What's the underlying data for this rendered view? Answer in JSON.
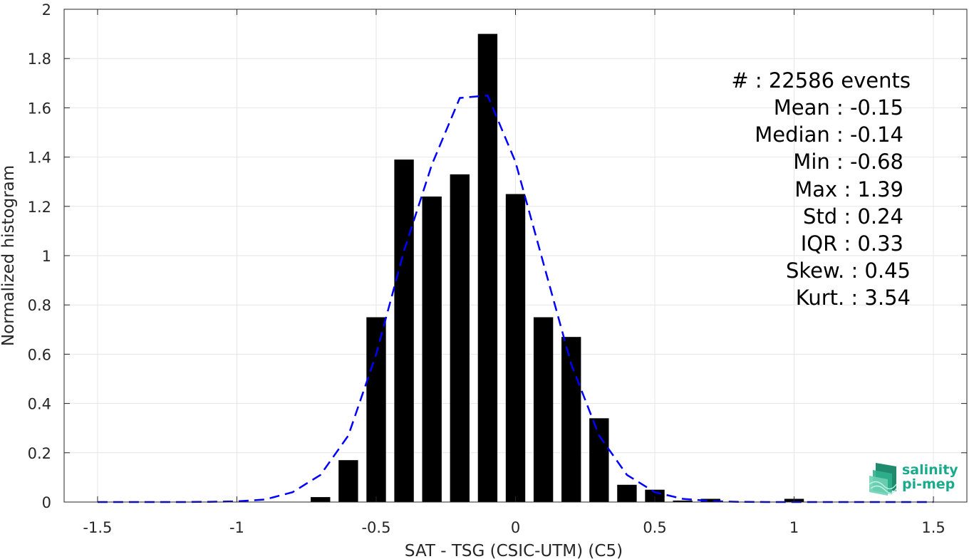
{
  "chart_data": {
    "type": "bar",
    "xlabel": "SAT - TSG (CSIC-UTM) (C5)",
    "ylabel": "Normalized histogram",
    "xlim": [
      -1.62,
      1.62
    ],
    "ylim": [
      0,
      2
    ],
    "x_ticks": [
      -1.5,
      -1,
      -0.5,
      0,
      0.5,
      1,
      1.5
    ],
    "x_tick_labels": [
      "-1.5",
      "-1",
      "-0.5",
      "0",
      "0.5",
      "1",
      "1.5"
    ],
    "y_ticks": [
      0,
      0.2,
      0.4,
      0.6,
      0.8,
      1,
      1.2,
      1.4,
      1.6,
      1.8,
      2
    ],
    "y_tick_labels": [
      "0",
      "0.2",
      "0.4",
      "0.6",
      "0.8",
      "1",
      "1.2",
      "1.4",
      "1.6",
      "1.8",
      "2"
    ],
    "grid": true,
    "bar_color": "#000000",
    "curve_color": "#0000ff",
    "bar_width": 0.07,
    "bars": {
      "x": [
        -0.7,
        -0.6,
        -0.5,
        -0.4,
        -0.3,
        -0.2,
        -0.1,
        0.0,
        0.1,
        0.2,
        0.3,
        0.4,
        0.5,
        0.6,
        0.7,
        1.0
      ],
      "values": [
        0.02,
        0.17,
        0.75,
        1.39,
        1.24,
        1.33,
        1.9,
        1.25,
        0.75,
        0.67,
        0.34,
        0.07,
        0.05,
        0.006,
        0.013,
        0.013
      ]
    },
    "series": [
      {
        "style": "dashed",
        "x": [
          -1.5,
          -1.4,
          -1.3,
          -1.2,
          -1.1,
          -1.0,
          -0.9,
          -0.8,
          -0.7,
          -0.6,
          -0.5,
          -0.4,
          -0.3,
          -0.2,
          -0.1,
          0.0,
          0.1,
          0.2,
          0.3,
          0.4,
          0.5,
          0.6,
          0.7,
          0.8,
          0.9,
          1.0,
          1.1,
          1.2,
          1.3,
          1.4,
          1.5
        ],
        "values": [
          0.0,
          0.0,
          0.0,
          0.0,
          0.001,
          0.003,
          0.01,
          0.04,
          0.11,
          0.27,
          0.6,
          1.02,
          1.37,
          1.64,
          1.65,
          1.38,
          0.97,
          0.56,
          0.27,
          0.11,
          0.04,
          0.013,
          0.004,
          0.001,
          0.0,
          0.0,
          0.0,
          0.0,
          0.0,
          0.0,
          0.0
        ]
      }
    ],
    "annotations": [
      "#  : 22586 events",
      "Mean : -0.15",
      "Median : -0.14",
      "Min : -0.68",
      "Max : 1.39",
      "Std : 0.24",
      "IQR : 0.33",
      "Skew. : 0.45",
      "Kurt. : 3.54"
    ]
  },
  "logo": {
    "line1": "salinity",
    "line2": "pi-mep",
    "color": "#1aaa8c"
  }
}
